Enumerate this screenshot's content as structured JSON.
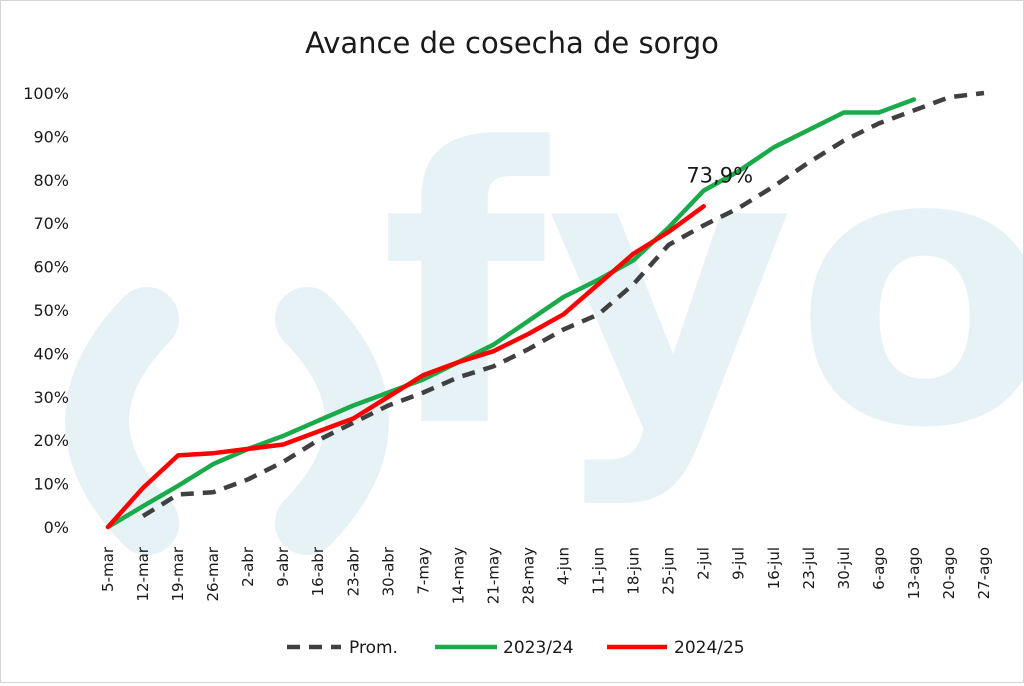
{
  "chart_data": {
    "type": "line",
    "title": "Avance de cosecha de sorgo",
    "xlabel": "",
    "ylabel": "",
    "categories": [
      "5-mar",
      "12-mar",
      "19-mar",
      "26-mar",
      "2-abr",
      "9-abr",
      "16-abr",
      "23-abr",
      "30-abr",
      "7-may",
      "14-may",
      "21-may",
      "28-may",
      "4-jun",
      "11-jun",
      "18-jun",
      "25-jun",
      "2-jul",
      "9-jul",
      "16-jul",
      "23-jul",
      "30-jul",
      "6-ago",
      "13-ago",
      "20-ago",
      "27-ago"
    ],
    "y_ticks": [
      "0%",
      "10%",
      "20%",
      "30%",
      "40%",
      "50%",
      "60%",
      "70%",
      "80%",
      "90%",
      "100%"
    ],
    "ylim": [
      0,
      100
    ],
    "grid": false,
    "legend_position": "bottom",
    "watermark": "fyo",
    "series": [
      {
        "name": "Prom.",
        "color": "#404040",
        "dash": true,
        "values": [
          null,
          2.5,
          7.5,
          8,
          11,
          15,
          20,
          24,
          28,
          31,
          34.5,
          37,
          41,
          45.5,
          49,
          56,
          65,
          69.5,
          73.5,
          78.5,
          84,
          89,
          93,
          96,
          99,
          100
        ]
      },
      {
        "name": "2023/24",
        "color": "#1aaa4a",
        "dash": false,
        "values": [
          0,
          4.8,
          9.5,
          14.5,
          18,
          21,
          24.5,
          28,
          31,
          34,
          38,
          42,
          47.5,
          53,
          57,
          61.5,
          69,
          77.5,
          82,
          87.5,
          91.5,
          95.5,
          95.5,
          98.5,
          null,
          null
        ]
      },
      {
        "name": "2024/25",
        "color": "#ff0000",
        "dash": false,
        "values": [
          0,
          9,
          16.5,
          17,
          18,
          19,
          22,
          25,
          30,
          35,
          38,
          40.5,
          44.5,
          49,
          56,
          63,
          68,
          73.9,
          null,
          null,
          null,
          null,
          null,
          null,
          null,
          null
        ]
      }
    ],
    "annotations": [
      {
        "text": "73,9%",
        "category": "2-jul",
        "value": 73.9
      }
    ]
  }
}
